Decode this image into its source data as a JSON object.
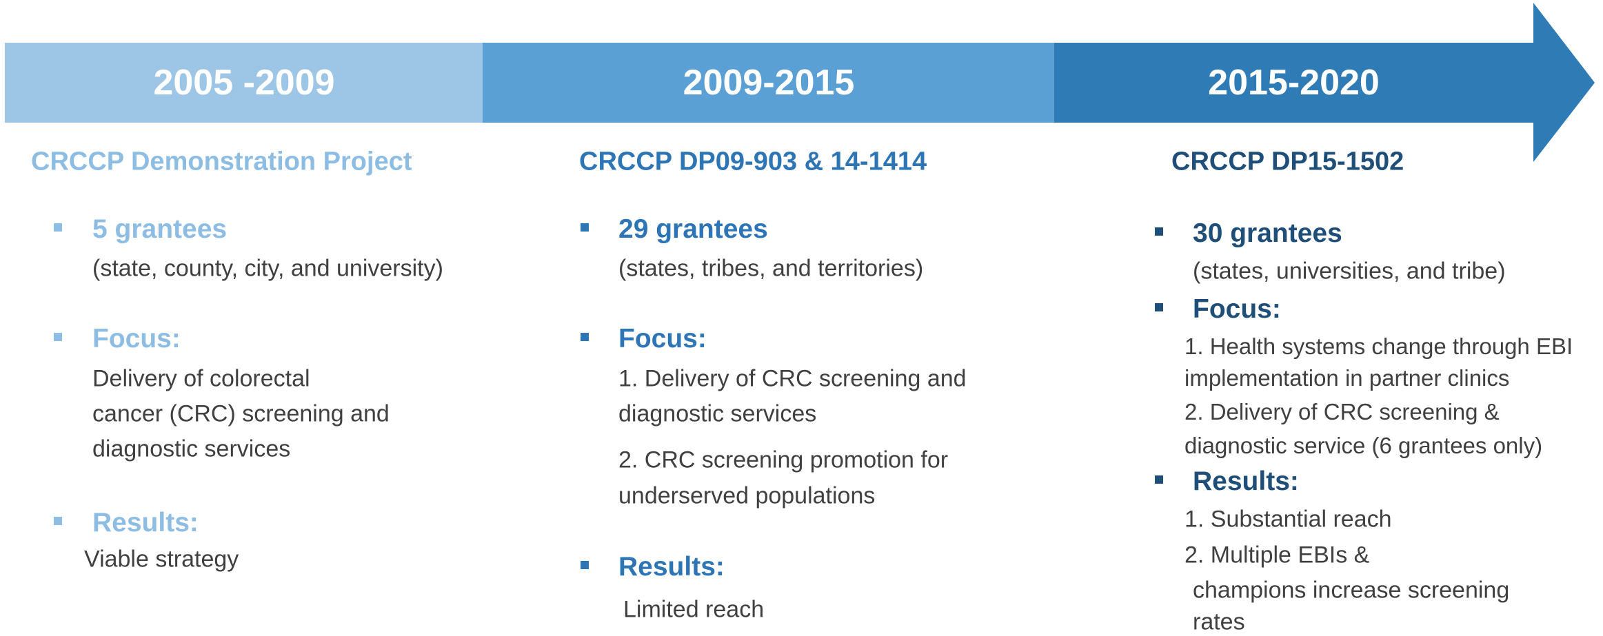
{
  "phases": [
    {
      "period": "2005 -2009",
      "title": "CRCCP Demonstration Project",
      "sections": [
        {
          "heading": "5 grantees",
          "lines": [
            "(state, county, city, and university)"
          ]
        },
        {
          "heading": "Focus:",
          "lines": [
            "Delivery of colorectal",
            "cancer (CRC) screening and",
            "diagnostic services"
          ]
        },
        {
          "heading": "Results:",
          "lines": [
            "Viable strategy"
          ]
        }
      ]
    },
    {
      "period": "2009-2015",
      "title": "CRCCP DP09-903 & 14-1414",
      "sections": [
        {
          "heading": "29 grantees",
          "lines": [
            "(states, tribes, and territories)"
          ]
        },
        {
          "heading": "Focus:",
          "lines": [
            "1. Delivery of CRC screening and",
            "diagnostic services",
            "2. CRC screening promotion for",
            "underserved  populations"
          ]
        },
        {
          "heading": "Results:",
          "lines": [
            "Limited reach"
          ]
        }
      ]
    },
    {
      "period": "2015-2020",
      "title": "CRCCP DP15-1502",
      "sections": [
        {
          "heading": "30 grantees",
          "lines": [
            "(states, universities, and tribe)"
          ]
        },
        {
          "heading": "Focus:",
          "lines": [
            "1. Health systems change through EBI",
            "implementation in partner clinics",
            "2. Delivery of CRC screening &",
            "diagnostic service (6 grantees only)"
          ]
        },
        {
          "heading": "Results:",
          "lines": [
            "1. Substantial reach",
            "2. Multiple EBIs &",
            "champions increase screening",
            "rates"
          ]
        }
      ]
    }
  ]
}
